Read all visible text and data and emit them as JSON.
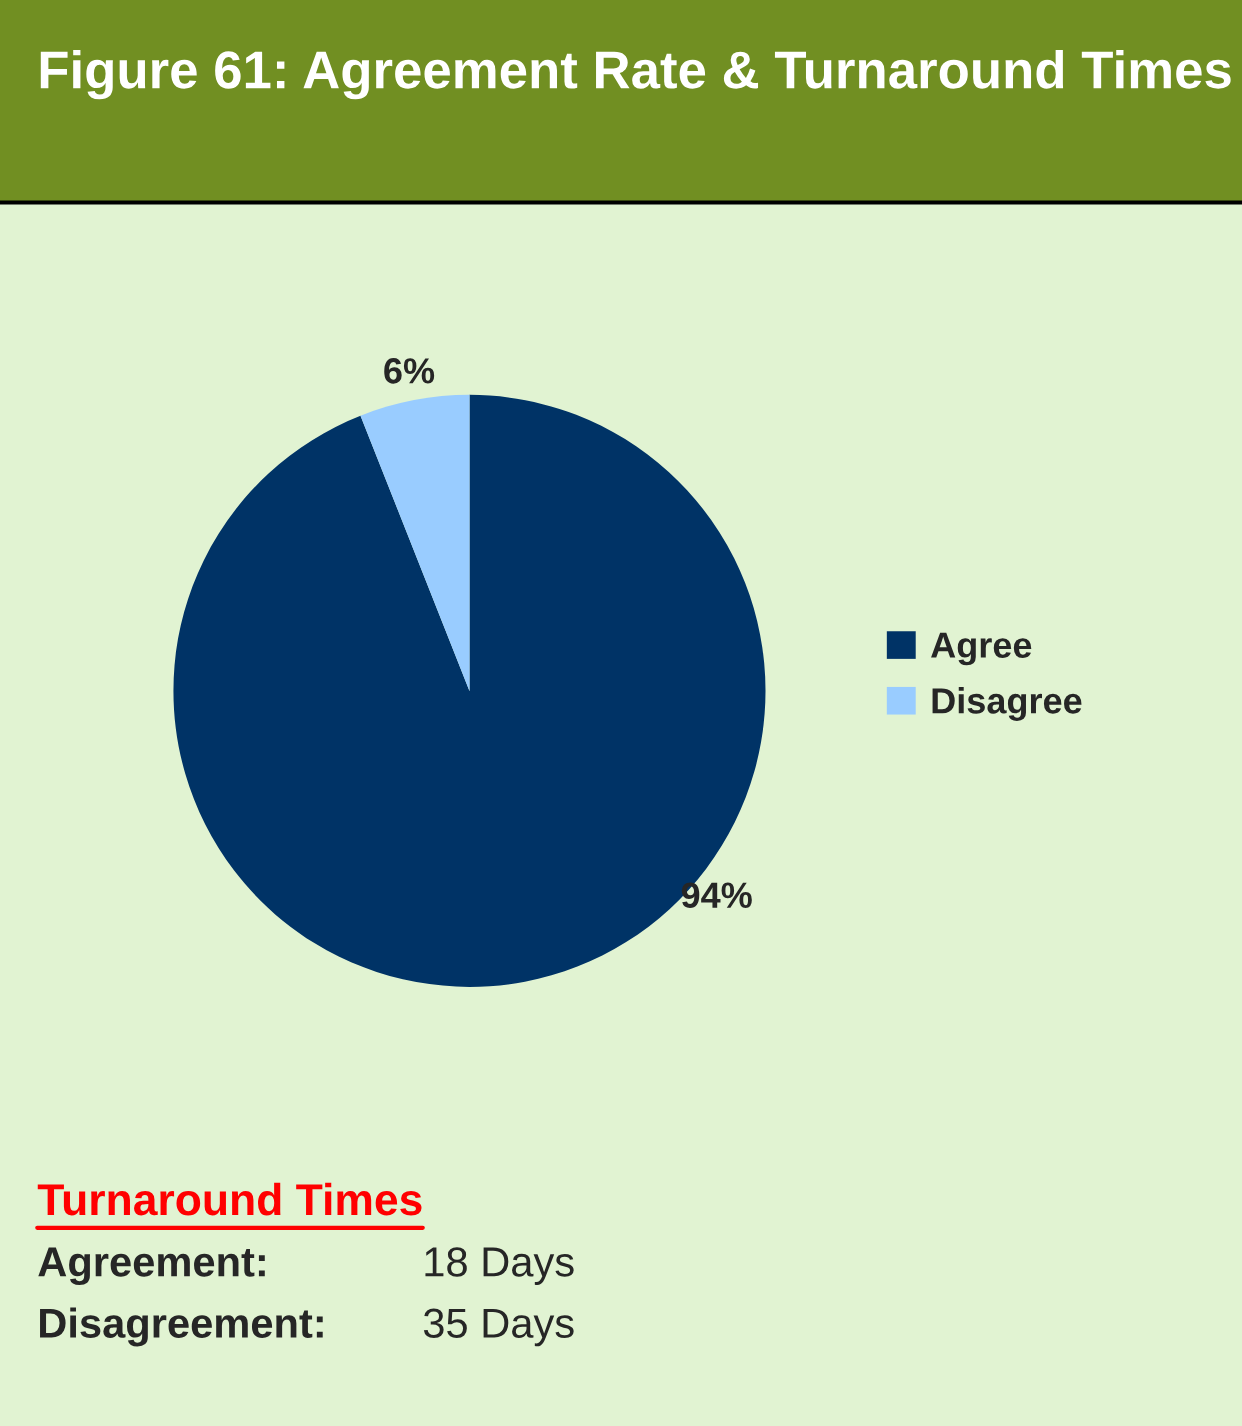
{
  "chart_data": {
    "type": "pie",
    "title": "Figure 61: Agreement Rate & Turnaround Times",
    "categories": [
      "Agree",
      "Disagree"
    ],
    "values": [
      94,
      6
    ],
    "colors": [
      "#003366",
      "#99ccff"
    ],
    "value_labels": [
      "94%",
      "6%"
    ],
    "legend": "right",
    "annotations": [
      "Turnaround Times",
      "Agreement:\t18 Days",
      "Disagreement: 35 Days"
    ]
  }
}
